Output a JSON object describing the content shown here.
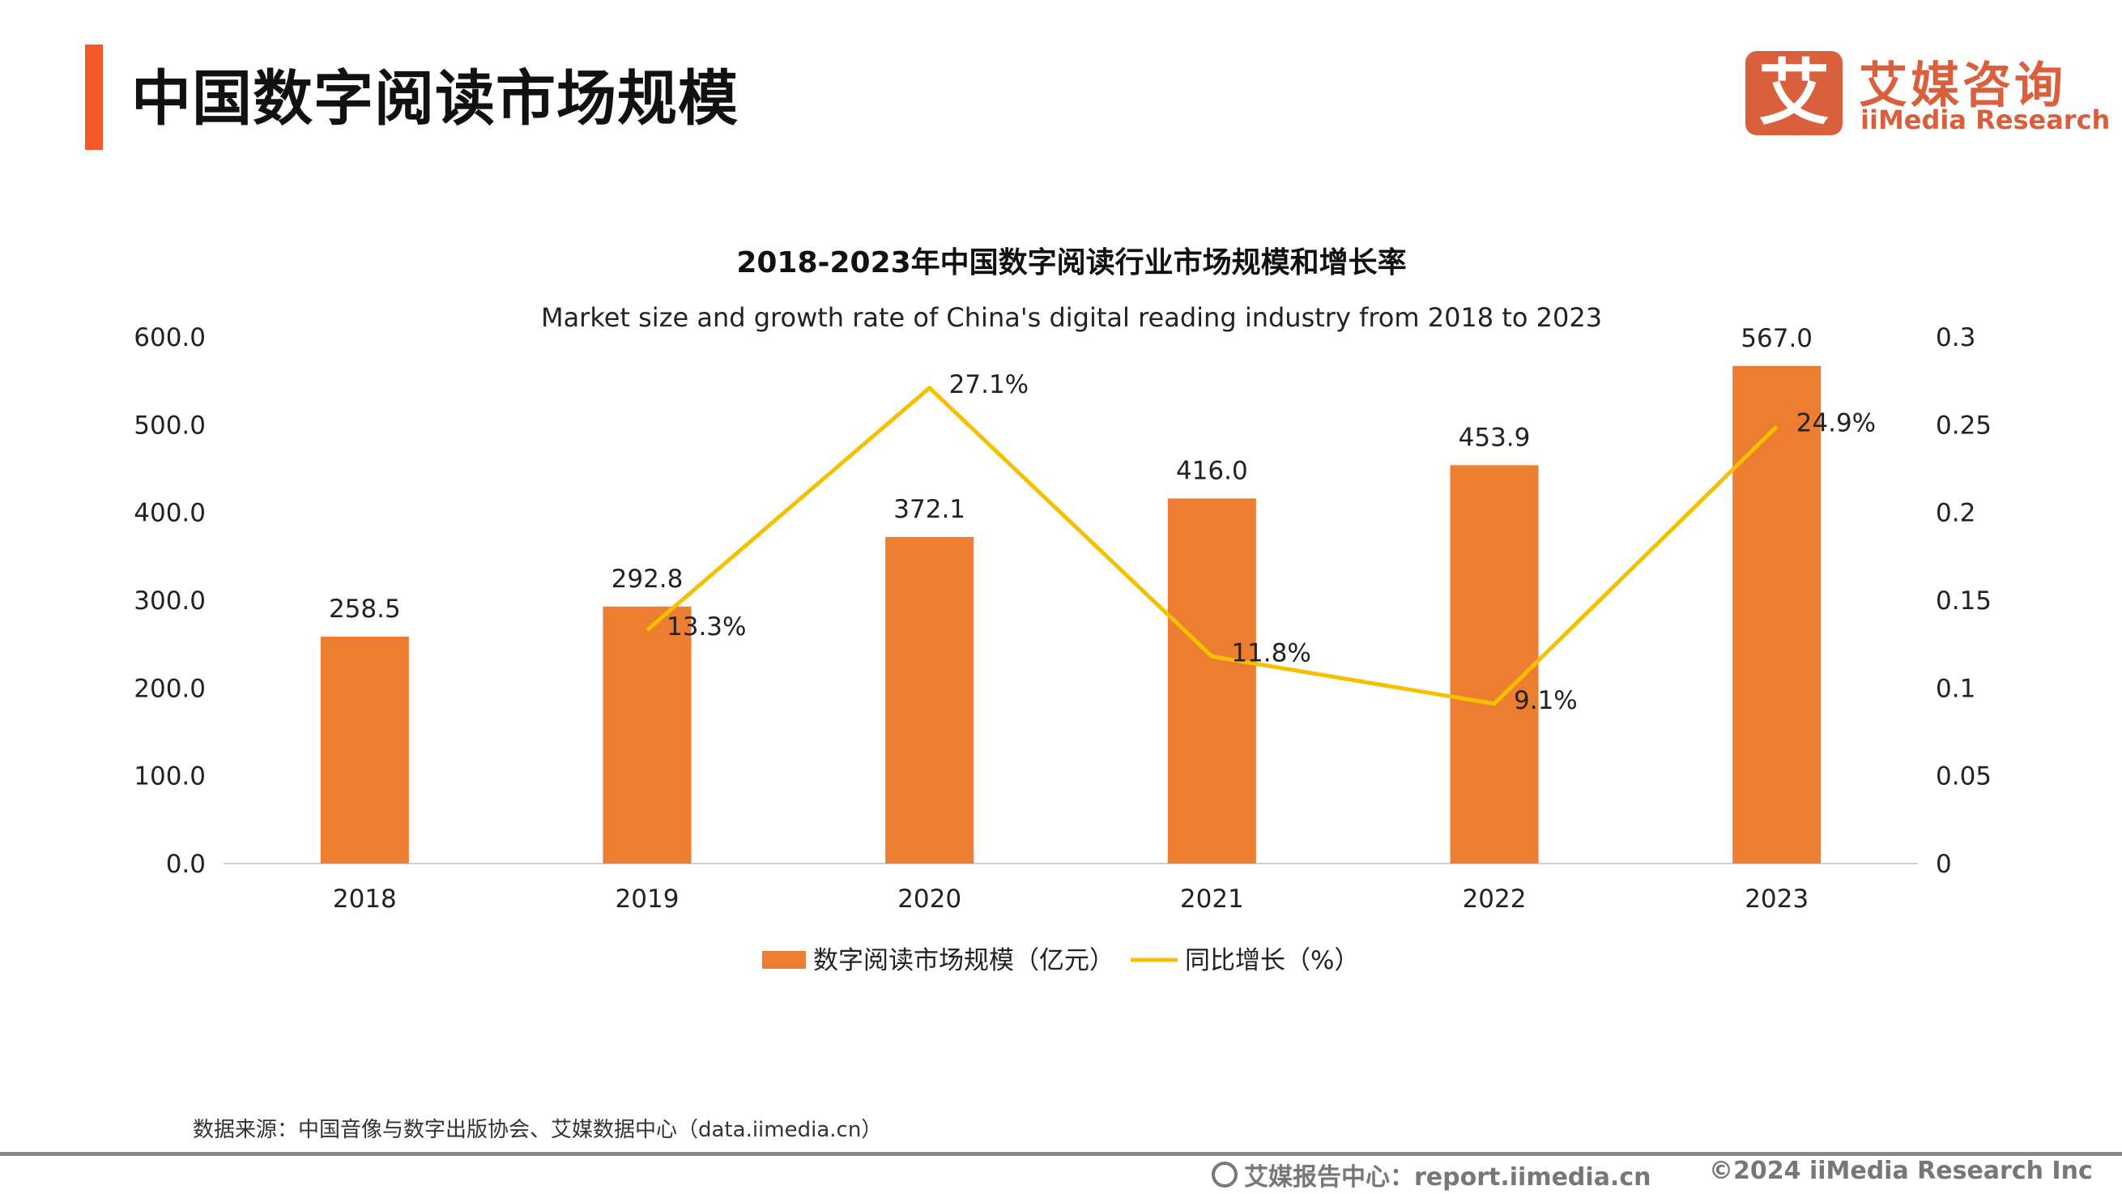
{
  "header": {
    "title": "中国数字阅读市场规模"
  },
  "logo": {
    "mark": "艾",
    "cn": "艾媒咨询",
    "en": "iiMedia Research"
  },
  "colors": {
    "accent": "#F4592A",
    "bar": "#ED7D31",
    "line": "#F5C000",
    "logo": "#D95F3D"
  },
  "chart_data": {
    "type": "bar+line",
    "title": "2018-2023年中国数字阅读行业市场规模和增长率",
    "subtitle": "Market size and growth rate of China's digital reading industry from 2018 to 2023",
    "categories": [
      "2018",
      "2019",
      "2020",
      "2021",
      "2022",
      "2023"
    ],
    "series": [
      {
        "name": "数字阅读市场规模（亿元）",
        "type": "bar",
        "axis": "left",
        "values": [
          258.5,
          292.8,
          372.1,
          416.0,
          453.9,
          567.0
        ],
        "labels": [
          "258.5",
          "292.8",
          "372.1",
          "416.0",
          "453.9",
          "567.0"
        ]
      },
      {
        "name": "同比增长（%）",
        "type": "line",
        "axis": "right",
        "values": [
          null,
          0.133,
          0.271,
          0.118,
          0.091,
          0.249
        ],
        "labels": [
          "",
          "13.3%",
          "27.1%",
          "11.8%",
          "9.1%",
          "24.9%"
        ]
      }
    ],
    "y_left": {
      "range": [
        0,
        600
      ],
      "ticks": [
        "0.0",
        "100.0",
        "200.0",
        "300.0",
        "400.0",
        "500.0",
        "600.0"
      ]
    },
    "y_right": {
      "range": [
        0,
        0.3
      ],
      "ticks": [
        "0",
        "0.05",
        "0.1",
        "0.15",
        "0.2",
        "0.25",
        "0.3"
      ]
    },
    "grid": false,
    "legend": "bottom-center"
  },
  "footer": {
    "source": "数据来源：中国音像与数字出版协会、艾媒数据中心（data.iimedia.cn）",
    "site": "艾媒报告中心：report.iimedia.cn",
    "copyright": "©2024  iiMedia Research  Inc"
  }
}
